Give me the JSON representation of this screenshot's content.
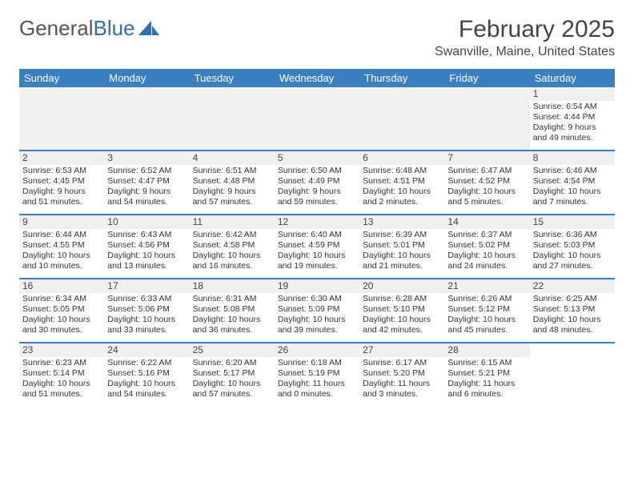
{
  "brand": {
    "part1": "General",
    "part2": "Blue",
    "text_color": "#555555",
    "blue_color": "#2f6fb0",
    "icon_color": "#2f6fb0"
  },
  "title": "February 2025",
  "location": "Swanville, Maine, United States",
  "header_bg": "#3a7fc0",
  "header_text_color": "#ffffff",
  "divider_color": "#3a7fc0",
  "daynum_bg": "#f0f0f0",
  "day_names": [
    "Sunday",
    "Monday",
    "Tuesday",
    "Wednesday",
    "Thursday",
    "Friday",
    "Saturday"
  ],
  "weeks": [
    [
      {
        "empty": true
      },
      {
        "empty": true
      },
      {
        "empty": true
      },
      {
        "empty": true
      },
      {
        "empty": true
      },
      {
        "empty": true
      },
      {
        "day": "1",
        "sunrise": "Sunrise: 6:54 AM",
        "sunset": "Sunset: 4:44 PM",
        "daylight": "Daylight: 9 hours and 49 minutes."
      }
    ],
    [
      {
        "day": "2",
        "sunrise": "Sunrise: 6:53 AM",
        "sunset": "Sunset: 4:45 PM",
        "daylight": "Daylight: 9 hours and 51 minutes."
      },
      {
        "day": "3",
        "sunrise": "Sunrise: 6:52 AM",
        "sunset": "Sunset: 4:47 PM",
        "daylight": "Daylight: 9 hours and 54 minutes."
      },
      {
        "day": "4",
        "sunrise": "Sunrise: 6:51 AM",
        "sunset": "Sunset: 4:48 PM",
        "daylight": "Daylight: 9 hours and 57 minutes."
      },
      {
        "day": "5",
        "sunrise": "Sunrise: 6:50 AM",
        "sunset": "Sunset: 4:49 PM",
        "daylight": "Daylight: 9 hours and 59 minutes."
      },
      {
        "day": "6",
        "sunrise": "Sunrise: 6:48 AM",
        "sunset": "Sunset: 4:51 PM",
        "daylight": "Daylight: 10 hours and 2 minutes."
      },
      {
        "day": "7",
        "sunrise": "Sunrise: 6:47 AM",
        "sunset": "Sunset: 4:52 PM",
        "daylight": "Daylight: 10 hours and 5 minutes."
      },
      {
        "day": "8",
        "sunrise": "Sunrise: 6:46 AM",
        "sunset": "Sunset: 4:54 PM",
        "daylight": "Daylight: 10 hours and 7 minutes."
      }
    ],
    [
      {
        "day": "9",
        "sunrise": "Sunrise: 6:44 AM",
        "sunset": "Sunset: 4:55 PM",
        "daylight": "Daylight: 10 hours and 10 minutes."
      },
      {
        "day": "10",
        "sunrise": "Sunrise: 6:43 AM",
        "sunset": "Sunset: 4:56 PM",
        "daylight": "Daylight: 10 hours and 13 minutes."
      },
      {
        "day": "11",
        "sunrise": "Sunrise: 6:42 AM",
        "sunset": "Sunset: 4:58 PM",
        "daylight": "Daylight: 10 hours and 16 minutes."
      },
      {
        "day": "12",
        "sunrise": "Sunrise: 6:40 AM",
        "sunset": "Sunset: 4:59 PM",
        "daylight": "Daylight: 10 hours and 19 minutes."
      },
      {
        "day": "13",
        "sunrise": "Sunrise: 6:39 AM",
        "sunset": "Sunset: 5:01 PM",
        "daylight": "Daylight: 10 hours and 21 minutes."
      },
      {
        "day": "14",
        "sunrise": "Sunrise: 6:37 AM",
        "sunset": "Sunset: 5:02 PM",
        "daylight": "Daylight: 10 hours and 24 minutes."
      },
      {
        "day": "15",
        "sunrise": "Sunrise: 6:36 AM",
        "sunset": "Sunset: 5:03 PM",
        "daylight": "Daylight: 10 hours and 27 minutes."
      }
    ],
    [
      {
        "day": "16",
        "sunrise": "Sunrise: 6:34 AM",
        "sunset": "Sunset: 5:05 PM",
        "daylight": "Daylight: 10 hours and 30 minutes."
      },
      {
        "day": "17",
        "sunrise": "Sunrise: 6:33 AM",
        "sunset": "Sunset: 5:06 PM",
        "daylight": "Daylight: 10 hours and 33 minutes."
      },
      {
        "day": "18",
        "sunrise": "Sunrise: 6:31 AM",
        "sunset": "Sunset: 5:08 PM",
        "daylight": "Daylight: 10 hours and 36 minutes."
      },
      {
        "day": "19",
        "sunrise": "Sunrise: 6:30 AM",
        "sunset": "Sunset: 5:09 PM",
        "daylight": "Daylight: 10 hours and 39 minutes."
      },
      {
        "day": "20",
        "sunrise": "Sunrise: 6:28 AM",
        "sunset": "Sunset: 5:10 PM",
        "daylight": "Daylight: 10 hours and 42 minutes."
      },
      {
        "day": "21",
        "sunrise": "Sunrise: 6:26 AM",
        "sunset": "Sunset: 5:12 PM",
        "daylight": "Daylight: 10 hours and 45 minutes."
      },
      {
        "day": "22",
        "sunrise": "Sunrise: 6:25 AM",
        "sunset": "Sunset: 5:13 PM",
        "daylight": "Daylight: 10 hours and 48 minutes."
      }
    ],
    [
      {
        "day": "23",
        "sunrise": "Sunrise: 6:23 AM",
        "sunset": "Sunset: 5:14 PM",
        "daylight": "Daylight: 10 hours and 51 minutes."
      },
      {
        "day": "24",
        "sunrise": "Sunrise: 6:22 AM",
        "sunset": "Sunset: 5:16 PM",
        "daylight": "Daylight: 10 hours and 54 minutes."
      },
      {
        "day": "25",
        "sunrise": "Sunrise: 6:20 AM",
        "sunset": "Sunset: 5:17 PM",
        "daylight": "Daylight: 10 hours and 57 minutes."
      },
      {
        "day": "26",
        "sunrise": "Sunrise: 6:18 AM",
        "sunset": "Sunset: 5:19 PM",
        "daylight": "Daylight: 11 hours and 0 minutes."
      },
      {
        "day": "27",
        "sunrise": "Sunrise: 6:17 AM",
        "sunset": "Sunset: 5:20 PM",
        "daylight": "Daylight: 11 hours and 3 minutes."
      },
      {
        "day": "28",
        "sunrise": "Sunrise: 6:15 AM",
        "sunset": "Sunset: 5:21 PM",
        "daylight": "Daylight: 11 hours and 6 minutes."
      },
      {
        "empty": true,
        "trailing": true
      }
    ]
  ]
}
